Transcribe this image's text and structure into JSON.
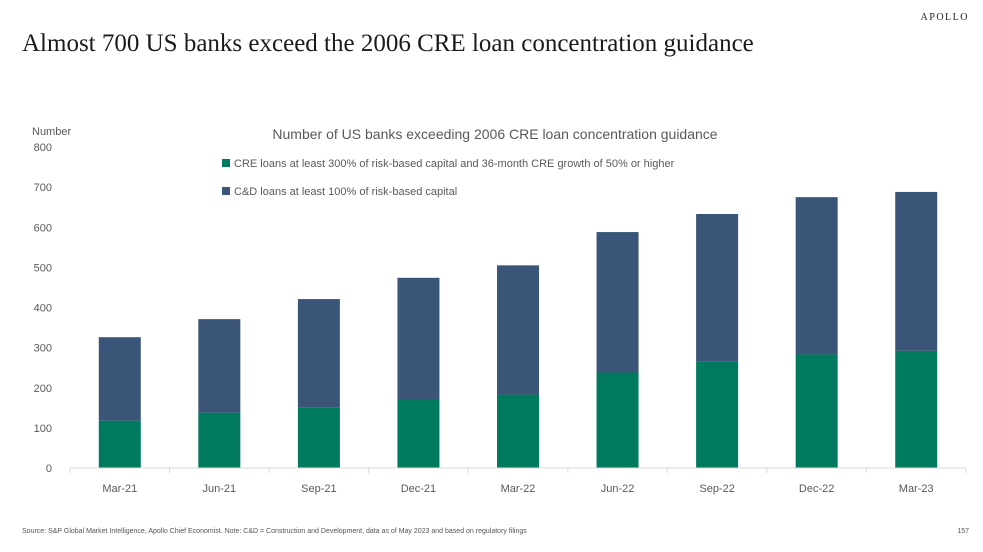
{
  "brand": "APOLLO",
  "headline": "Almost 700 US banks exceed the 2006 CRE loan concentration guidance",
  "footer": {
    "source": "Source: S&P Global Market Intelligence, Apollo Chief Economist. Note: C&D = Construction and Development, data as of May 2023 and based on regulatory filings",
    "page": "157"
  },
  "colors": {
    "cre": "#007a5e",
    "cd": "#3a5577",
    "axis_text": "#595959",
    "axis_line": "#d9d9d9"
  },
  "chart_data": {
    "type": "bar",
    "stacked": true,
    "title": "Number of US banks exceeding 2006 CRE loan concentration guidance",
    "ylabel": "Number",
    "xlabel": "",
    "ylim": [
      0,
      800
    ],
    "yticks": [
      0,
      100,
      200,
      300,
      400,
      500,
      600,
      700,
      800
    ],
    "grid": false,
    "legend_position": "top-left",
    "categories": [
      "Mar-21",
      "Jun-21",
      "Sep-21",
      "Dec-21",
      "Mar-22",
      "Jun-22",
      "Sep-22",
      "Dec-22",
      "Mar-23"
    ],
    "series": [
      {
        "name": "CRE loans at least 300% of risk-based capital and 36-month CRE growth of 50% or higher",
        "color": "#007a5e",
        "values": [
          118,
          138,
          150,
          172,
          183,
          238,
          265,
          283,
          292
        ]
      },
      {
        "name": "C&D loans at least 100% of risk-based capital",
        "color": "#3a5577",
        "values": [
          208,
          233,
          271,
          302,
          322,
          350,
          368,
          392,
          396
        ]
      }
    ]
  }
}
